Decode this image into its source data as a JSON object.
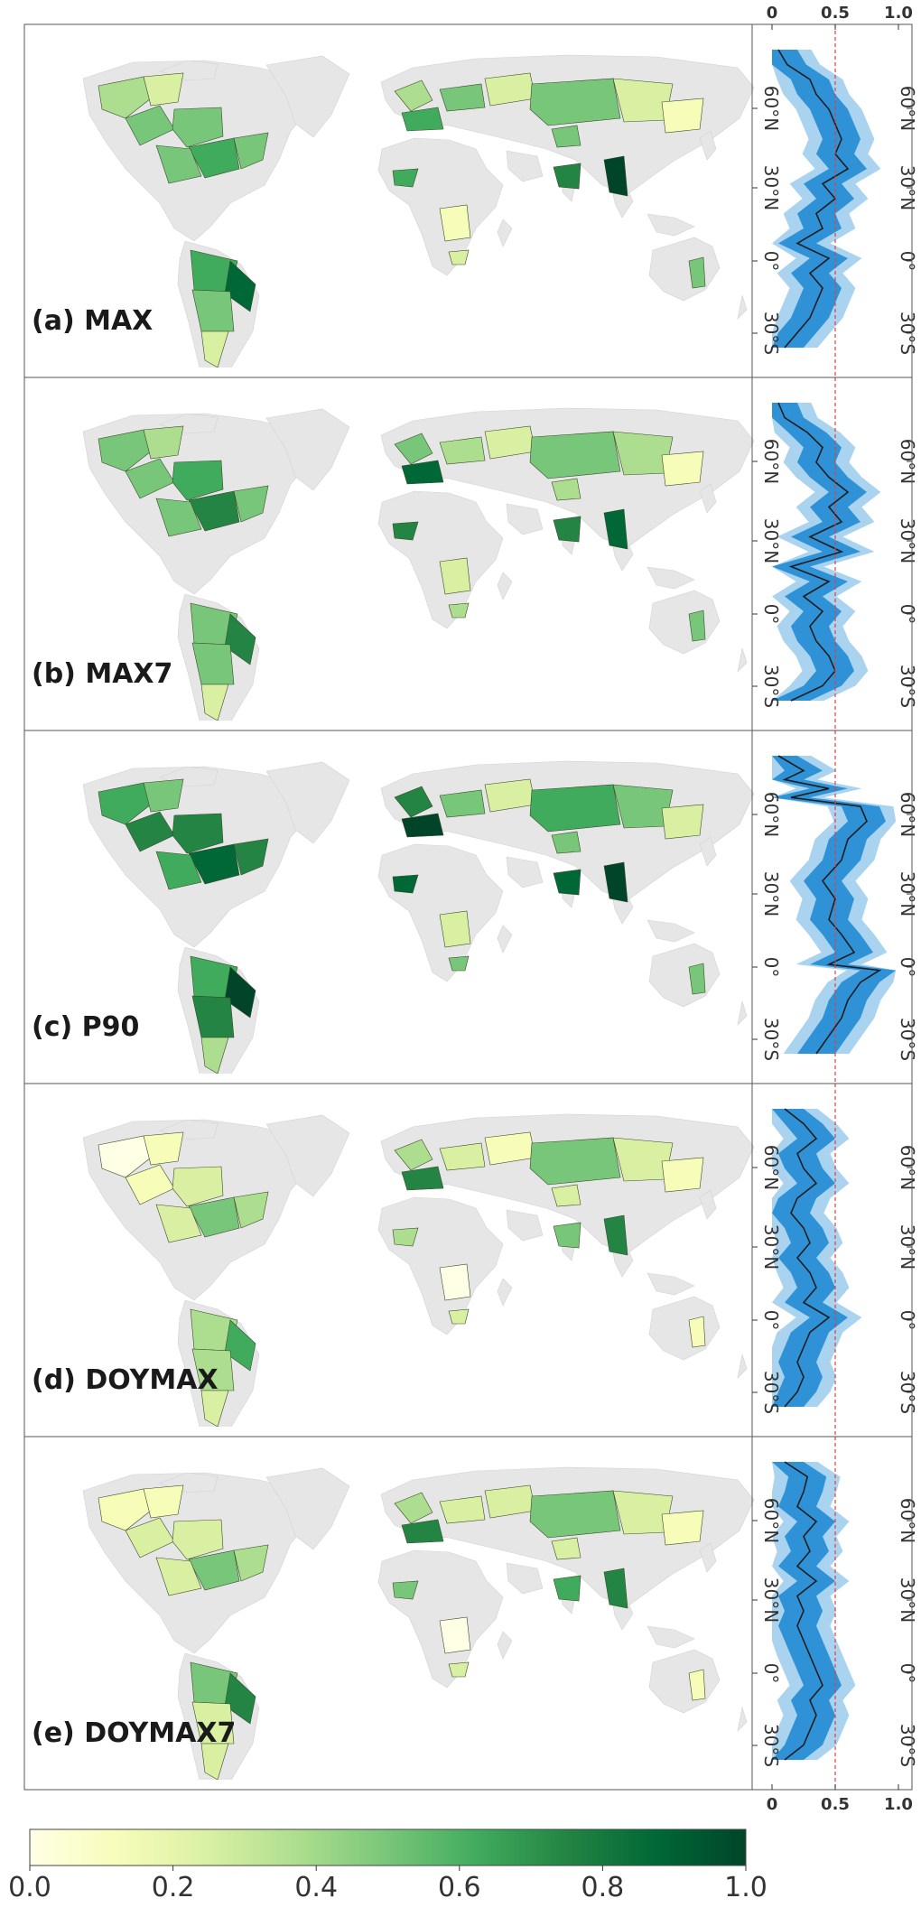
{
  "panels": [
    {
      "label": "(a) MAX",
      "prof": [
        [
          0.0,
          0.05
        ],
        [
          0.05,
          0.12
        ],
        [
          0.1,
          0.3
        ],
        [
          0.15,
          0.35
        ],
        [
          0.2,
          0.45
        ],
        [
          0.25,
          0.5
        ],
        [
          0.3,
          0.55
        ],
        [
          0.35,
          0.5
        ],
        [
          0.4,
          0.6
        ],
        [
          0.45,
          0.4
        ],
        [
          0.5,
          0.5
        ],
        [
          0.55,
          0.35
        ],
        [
          0.6,
          0.4
        ],
        [
          0.65,
          0.2
        ],
        [
          0.7,
          0.45
        ],
        [
          0.75,
          0.3
        ],
        [
          0.8,
          0.4
        ],
        [
          0.85,
          0.35
        ],
        [
          0.9,
          0.3
        ],
        [
          0.95,
          0.2
        ],
        [
          1.0,
          0.1
        ]
      ]
    },
    {
      "label": "(b) MAX7",
      "prof": [
        [
          0.0,
          0.05
        ],
        [
          0.05,
          0.1
        ],
        [
          0.1,
          0.28
        ],
        [
          0.15,
          0.4
        ],
        [
          0.2,
          0.35
        ],
        [
          0.25,
          0.45
        ],
        [
          0.3,
          0.6
        ],
        [
          0.35,
          0.45
        ],
        [
          0.4,
          0.55
        ],
        [
          0.45,
          0.3
        ],
        [
          0.5,
          0.55
        ],
        [
          0.55,
          0.15
        ],
        [
          0.6,
          0.45
        ],
        [
          0.65,
          0.25
        ],
        [
          0.7,
          0.4
        ],
        [
          0.75,
          0.3
        ],
        [
          0.8,
          0.35
        ],
        [
          0.85,
          0.45
        ],
        [
          0.9,
          0.5
        ],
        [
          0.95,
          0.4
        ],
        [
          1.0,
          0.15
        ]
      ]
    },
    {
      "label": "(c) P90",
      "prof": [
        [
          0.0,
          0.05
        ],
        [
          0.05,
          0.25
        ],
        [
          0.08,
          0.1
        ],
        [
          0.11,
          0.45
        ],
        [
          0.14,
          0.15
        ],
        [
          0.17,
          0.7
        ],
        [
          0.22,
          0.75
        ],
        [
          0.28,
          0.6
        ],
        [
          0.35,
          0.55
        ],
        [
          0.42,
          0.4
        ],
        [
          0.48,
          0.5
        ],
        [
          0.55,
          0.45
        ],
        [
          0.6,
          0.55
        ],
        [
          0.66,
          0.65
        ],
        [
          0.7,
          0.45
        ],
        [
          0.72,
          0.85
        ],
        [
          0.76,
          0.7
        ],
        [
          0.82,
          0.6
        ],
        [
          0.88,
          0.55
        ],
        [
          0.94,
          0.45
        ],
        [
          1.0,
          0.35
        ]
      ]
    },
    {
      "label": "(d) DOYMAX",
      "prof": [
        [
          0.0,
          0.1
        ],
        [
          0.05,
          0.25
        ],
        [
          0.1,
          0.35
        ],
        [
          0.15,
          0.2
        ],
        [
          0.2,
          0.25
        ],
        [
          0.25,
          0.35
        ],
        [
          0.3,
          0.2
        ],
        [
          0.35,
          0.15
        ],
        [
          0.4,
          0.25
        ],
        [
          0.45,
          0.3
        ],
        [
          0.5,
          0.2
        ],
        [
          0.55,
          0.3
        ],
        [
          0.6,
          0.35
        ],
        [
          0.65,
          0.25
        ],
        [
          0.7,
          0.45
        ],
        [
          0.75,
          0.3
        ],
        [
          0.8,
          0.25
        ],
        [
          0.85,
          0.2
        ],
        [
          0.9,
          0.25
        ],
        [
          0.95,
          0.2
        ],
        [
          1.0,
          0.1
        ]
      ]
    },
    {
      "label": "(e) DOYMAX7",
      "prof": [
        [
          0.0,
          0.1
        ],
        [
          0.05,
          0.28
        ],
        [
          0.1,
          0.25
        ],
        [
          0.15,
          0.2
        ],
        [
          0.2,
          0.35
        ],
        [
          0.25,
          0.25
        ],
        [
          0.3,
          0.3
        ],
        [
          0.35,
          0.2
        ],
        [
          0.4,
          0.35
        ],
        [
          0.45,
          0.2
        ],
        [
          0.5,
          0.25
        ],
        [
          0.55,
          0.2
        ],
        [
          0.6,
          0.25
        ],
        [
          0.65,
          0.3
        ],
        [
          0.7,
          0.35
        ],
        [
          0.75,
          0.4
        ],
        [
          0.8,
          0.3
        ],
        [
          0.85,
          0.35
        ],
        [
          0.9,
          0.3
        ],
        [
          0.95,
          0.25
        ],
        [
          1.0,
          0.1
        ]
      ]
    }
  ],
  "lat_ticks": [
    "60°N",
    "30°N",
    "0°",
    "30°S"
  ],
  "x_ticks": [
    "0",
    "0.5",
    "1.0"
  ],
  "colorbar_ticks": [
    "0.0",
    "0.2",
    "0.4",
    "0.6",
    "0.8",
    "1.0"
  ],
  "colors": {
    "land": "#e6e6e6",
    "band_outer": "#a9d3ef",
    "band_inner": "#2f92d6",
    "median": "#1c1c1c",
    "refline": "#e04040",
    "cmap": [
      "#ffffe5",
      "#f7fcb9",
      "#d9f0a3",
      "#addd8e",
      "#78c679",
      "#41ab5d",
      "#238443",
      "#006837",
      "#004529"
    ]
  }
}
